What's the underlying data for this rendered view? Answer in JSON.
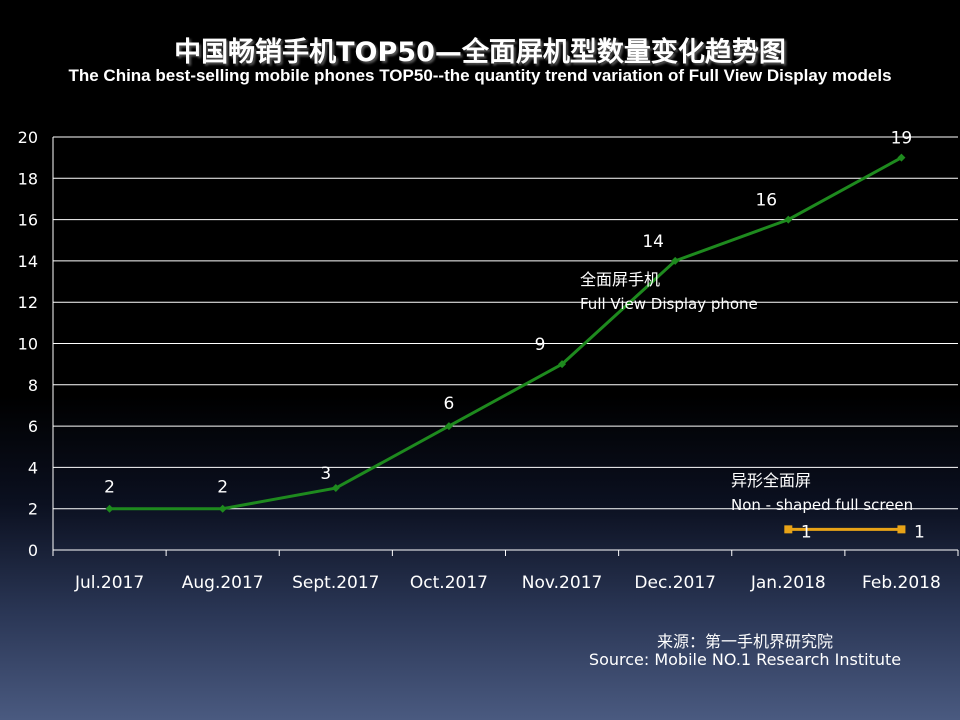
{
  "title_cn": "中国畅销手机TOP50—全面屏机型数量变化趋势图",
  "title_en": "The China best-selling mobile phones TOP50--the quantity trend variation of Full View Display models",
  "source_cn": "来源：第一手机界研究院",
  "source_en": "Source: Mobile NO.1 Research Institute",
  "colors": {
    "full_view": "#1e8a1e",
    "non_shaped": "#e8a317",
    "grid": "#ffffff",
    "text": "#ffffff"
  },
  "chart_data": {
    "type": "line",
    "categories": [
      "Jul.2017",
      "Aug.2017",
      "Sept.2017",
      "Oct.2017",
      "Nov.2017",
      "Dec.2017",
      "Jan.2018",
      "Feb.2018"
    ],
    "ylim": [
      0,
      20
    ],
    "yticks": [
      0,
      2,
      4,
      6,
      8,
      10,
      12,
      14,
      16,
      18,
      20
    ],
    "grid": true,
    "series": [
      {
        "name_cn": "全面屏手机",
        "name_en": "Full View Display phone",
        "color": "#1e8a1e",
        "values": [
          2,
          2,
          3,
          6,
          9,
          14,
          16,
          19
        ]
      },
      {
        "name_cn": "异形全面屏",
        "name_en": "Non - shaped full screen",
        "color": "#e8a317",
        "values": [
          null,
          null,
          null,
          null,
          null,
          null,
          1,
          1
        ]
      }
    ]
  }
}
